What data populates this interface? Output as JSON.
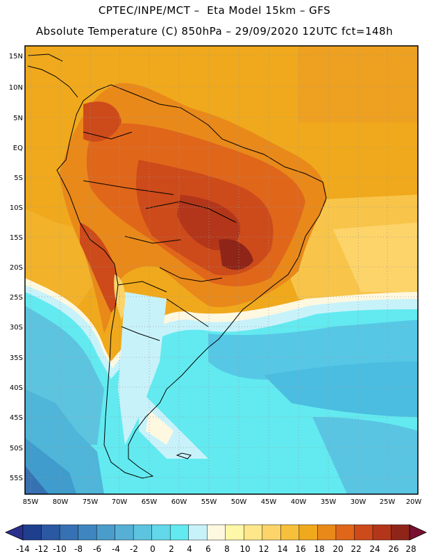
{
  "header": {
    "line1": "CPTEC/INPE/MCT –  Eta Model 15km – GFS",
    "line2": "Absolute Temperature (C) 850hPa – 29/09/2020 12UTC fct=148h"
  },
  "map": {
    "lon_range": [
      -86,
      -20
    ],
    "lat_range": [
      -58,
      17
    ],
    "lat_labels": [
      "15N",
      "10N",
      "5N",
      "EQ",
      "5S",
      "10S",
      "15S",
      "20S",
      "25S",
      "30S",
      "35S",
      "40S",
      "45S",
      "50S",
      "55S"
    ],
    "lon_labels": [
      "85W",
      "80W",
      "75W",
      "70W",
      "65W",
      "60W",
      "55W",
      "50W",
      "45W",
      "40W",
      "35W",
      "30W",
      "25W",
      "20W"
    ],
    "gridlines": "dotted"
  },
  "colorbar": {
    "ticks": [
      "-14",
      "-12",
      "-10",
      "-8",
      "-6",
      "-4",
      "-2",
      "0",
      "2",
      "4",
      "6",
      "8",
      "10",
      "12",
      "14",
      "16",
      "18",
      "20",
      "22",
      "24",
      "26",
      "28"
    ],
    "colors": [
      "#1f3f8e",
      "#2b58a2",
      "#3671b3",
      "#3f86c0",
      "#4a9ccb",
      "#56b0d6",
      "#5dc4e0",
      "#62d8ea",
      "#62eaf0",
      "#c8f2fa",
      "#fff8e0",
      "#fff7a8",
      "#fde78a",
      "#fcd46a",
      "#f7c03c",
      "#f0a91c",
      "#e9891a",
      "#e0661a",
      "#cd4a1a",
      "#b3361a",
      "#8e2518"
    ],
    "arrow_low_color": "#2a2f8e",
    "arrow_high_color": "#7a1030"
  }
}
